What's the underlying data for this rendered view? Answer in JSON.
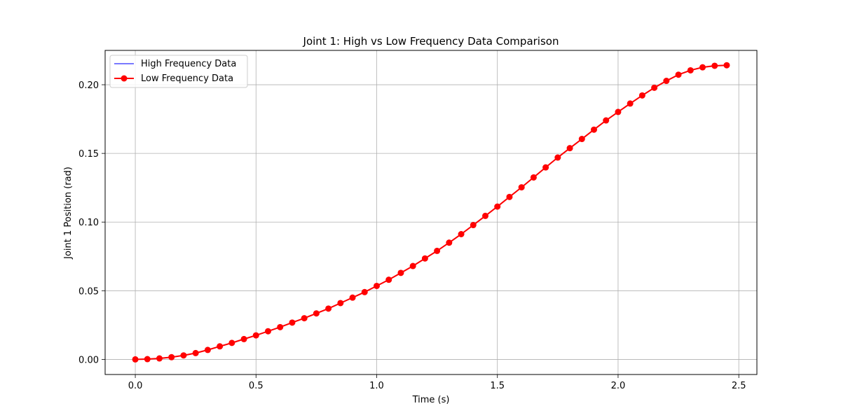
{
  "chart_data": {
    "type": "line",
    "title": "Joint 1: High vs Low Frequency Data Comparison",
    "xlabel": "Time (s)",
    "ylabel": "Joint 1 Position (rad)",
    "xlim": [
      -0.125,
      2.575
    ],
    "ylim": [
      -0.011,
      0.225
    ],
    "xticks": [
      0.0,
      0.5,
      1.0,
      1.5,
      2.0,
      2.5
    ],
    "xtick_labels": [
      "0.0",
      "0.5",
      "1.0",
      "1.5",
      "2.0",
      "2.5"
    ],
    "yticks": [
      0.0,
      0.05,
      0.1,
      0.15,
      0.2
    ],
    "ytick_labels": [
      "0.00",
      "0.05",
      "0.10",
      "0.15",
      "0.20"
    ],
    "grid": true,
    "legend_position": "top-left",
    "x": [
      0.0,
      0.05,
      0.1,
      0.15,
      0.2,
      0.25,
      0.3,
      0.35,
      0.4,
      0.45,
      0.5,
      0.55,
      0.6,
      0.65,
      0.7,
      0.75,
      0.8,
      0.85,
      0.9,
      0.95,
      1.0,
      1.05,
      1.1,
      1.15,
      1.2,
      1.25,
      1.3,
      1.35,
      1.4,
      1.45,
      1.5,
      1.55,
      1.6,
      1.65,
      1.7,
      1.75,
      1.8,
      1.85,
      1.9,
      1.95,
      2.0,
      2.05,
      2.1,
      2.15,
      2.2,
      2.25,
      2.3,
      2.35,
      2.4,
      2.45
    ],
    "series": [
      {
        "name": "High Frequency Data",
        "color": "#4d4dff",
        "marker": "none",
        "values": [
          0.0,
          0.0002,
          0.0007,
          0.0016,
          0.0029,
          0.0046,
          0.0069,
          0.0095,
          0.012,
          0.0148,
          0.0175,
          0.0205,
          0.0235,
          0.0268,
          0.03,
          0.0335,
          0.037,
          0.041,
          0.045,
          0.049,
          0.0535,
          0.058,
          0.063,
          0.068,
          0.0735,
          0.079,
          0.085,
          0.0912,
          0.0978,
          0.1045,
          0.1113,
          0.1183,
          0.1253,
          0.1325,
          0.1398,
          0.147,
          0.1538,
          0.1605,
          0.1673,
          0.174,
          0.1802,
          0.1863,
          0.1922,
          0.1978,
          0.2028,
          0.2073,
          0.2105,
          0.2127,
          0.2138,
          0.2142
        ]
      },
      {
        "name": "Low Frequency Data",
        "color": "#ff0000",
        "marker": "circle",
        "values": [
          0.0,
          0.0002,
          0.0007,
          0.0016,
          0.0029,
          0.0046,
          0.0069,
          0.0095,
          0.012,
          0.0148,
          0.0175,
          0.0205,
          0.0235,
          0.0268,
          0.03,
          0.0335,
          0.037,
          0.041,
          0.045,
          0.049,
          0.0535,
          0.058,
          0.063,
          0.068,
          0.0735,
          0.079,
          0.085,
          0.0912,
          0.0978,
          0.1045,
          0.1113,
          0.1183,
          0.1253,
          0.1325,
          0.1398,
          0.147,
          0.1538,
          0.1605,
          0.1673,
          0.174,
          0.1802,
          0.1863,
          0.1922,
          0.1978,
          0.2028,
          0.2073,
          0.2105,
          0.2127,
          0.2138,
          0.2142
        ]
      }
    ]
  }
}
